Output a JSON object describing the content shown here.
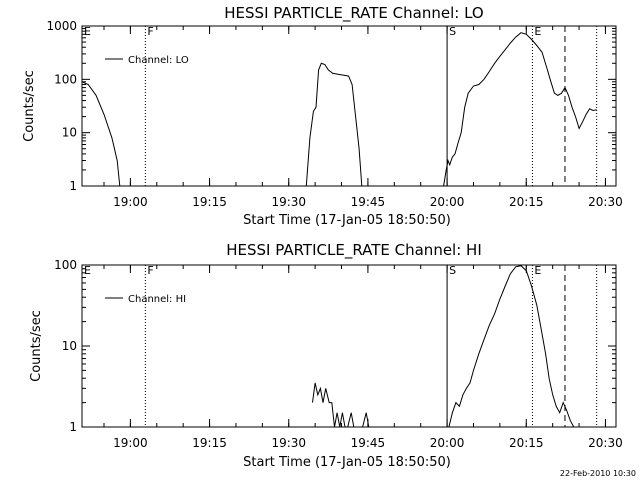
{
  "footer": {
    "date_stamp": "22-Feb-2010 10:30"
  },
  "chart_data": [
    {
      "type": "line",
      "title": "HESSI PARTICLE_RATE Channel: LO",
      "xlabel": "Start Time (17-Jan-05 18:50:50)",
      "ylabel": "Counts/sec",
      "yscale": "log",
      "xlim": [
        "18:50:50",
        "20:32:00"
      ],
      "ylim": [
        1,
        1000
      ],
      "x_ticks": [
        "19:00",
        "19:15",
        "19:30",
        "19:45",
        "20:00",
        "20:15",
        "20:30"
      ],
      "y_ticks": [
        "1",
        "10",
        "100",
        "1000"
      ],
      "legend": {
        "position": "top-left",
        "entries": [
          "Channel: LO"
        ]
      },
      "markers": [
        {
          "label": "E",
          "x": "18:50:50",
          "style": "dotted"
        },
        {
          "label": "F",
          "x": "19:02:50",
          "style": "dotted"
        },
        {
          "label": "S",
          "x": "20:00:00",
          "style": "solid"
        },
        {
          "label": "E",
          "x": "20:16:10",
          "style": "dotted"
        },
        {
          "label": "",
          "x": "20:22:20",
          "style": "dashed"
        },
        {
          "label": "",
          "x": "20:28:20",
          "style": "dotted"
        }
      ],
      "series": [
        {
          "name": "Channel: LO",
          "segments": [
            [
              [
                "18:50:50",
                90
              ],
              [
                "18:52:00",
                80
              ],
              [
                "18:53:30",
                50
              ],
              [
                "18:55:00",
                22
              ],
              [
                "18:56:30",
                8
              ],
              [
                "18:57:30",
                3
              ],
              [
                "18:58:00",
                1
              ]
            ],
            [
              [
                "19:33:20",
                1
              ],
              [
                "19:34:00",
                8
              ],
              [
                "19:34:40",
                25
              ],
              [
                "19:35:10",
                30
              ],
              [
                "19:35:40",
                150
              ],
              [
                "19:36:10",
                200
              ],
              [
                "19:36:50",
                190
              ],
              [
                "19:37:30",
                150
              ],
              [
                "19:38:20",
                130
              ],
              [
                "19:39:20",
                125
              ],
              [
                "19:40:20",
                120
              ],
              [
                "19:41:20",
                115
              ],
              [
                "19:42:00",
                80
              ],
              [
                "19:42:40",
                20
              ],
              [
                "19:43:20",
                5
              ],
              [
                "19:43:50",
                1
              ]
            ],
            [
              [
                "19:59:20",
                1
              ],
              [
                "19:59:50",
                2
              ],
              [
                "20:00:10",
                3
              ],
              [
                "20:00:30",
                2.5
              ],
              [
                "20:01:00",
                3.5
              ],
              [
                "20:01:30",
                4
              ],
              [
                "20:02:00",
                6
              ],
              [
                "20:02:40",
                10
              ],
              [
                "20:03:20",
                30
              ],
              [
                "20:04:00",
                55
              ],
              [
                "20:05:00",
                75
              ],
              [
                "20:06:00",
                80
              ],
              [
                "20:07:00",
                100
              ],
              [
                "20:08:00",
                140
              ],
              [
                "20:09:00",
                200
              ],
              [
                "20:10:00",
                270
              ],
              [
                "20:11:00",
                360
              ],
              [
                "20:12:00",
                480
              ],
              [
                "20:13:00",
                620
              ],
              [
                "20:14:00",
                750
              ],
              [
                "20:15:00",
                700
              ],
              [
                "20:16:00",
                560
              ],
              [
                "20:17:00",
                430
              ],
              [
                "20:18:00",
                320
              ],
              [
                "20:19:00",
                150
              ],
              [
                "20:19:40",
                90
              ],
              [
                "20:20:20",
                55
              ],
              [
                "20:21:00",
                50
              ],
              [
                "20:21:40",
                55
              ],
              [
                "20:22:20",
                70
              ],
              [
                "20:23:00",
                50
              ],
              [
                "20:23:40",
                30
              ],
              [
                "20:24:20",
                20
              ],
              [
                "20:25:00",
                12
              ],
              [
                "20:25:40",
                16
              ],
              [
                "20:26:20",
                22
              ],
              [
                "20:27:00",
                28
              ],
              [
                "20:27:40",
                26
              ],
              [
                "20:28:20",
                27
              ]
            ]
          ]
        }
      ]
    },
    {
      "type": "line",
      "title": "HESSI PARTICLE_RATE Channel: HI",
      "xlabel": "Start Time (17-Jan-05 18:50:50)",
      "ylabel": "Counts/sec",
      "yscale": "log",
      "xlim": [
        "18:50:50",
        "20:32:00"
      ],
      "ylim": [
        1,
        100
      ],
      "x_ticks": [
        "19:00",
        "19:15",
        "19:30",
        "19:45",
        "20:00",
        "20:15",
        "20:30"
      ],
      "y_ticks": [
        "1",
        "10",
        "100"
      ],
      "legend": {
        "position": "top-left",
        "entries": [
          "Channel: HI"
        ]
      },
      "markers": [
        {
          "label": "E",
          "x": "18:50:50",
          "style": "dotted"
        },
        {
          "label": "F",
          "x": "19:02:50",
          "style": "dotted"
        },
        {
          "label": "S",
          "x": "20:00:00",
          "style": "solid"
        },
        {
          "label": "E",
          "x": "20:16:10",
          "style": "dotted"
        },
        {
          "label": "",
          "x": "20:22:20",
          "style": "dashed"
        },
        {
          "label": "",
          "x": "20:28:20",
          "style": "dotted"
        }
      ],
      "series": [
        {
          "name": "Channel: HI",
          "segments": [
            [
              [
                "19:34:30",
                2
              ],
              [
                "19:35:00",
                3.5
              ],
              [
                "19:35:30",
                2.5
              ],
              [
                "19:36:00",
                3
              ],
              [
                "19:36:30",
                2
              ],
              [
                "19:37:00",
                3
              ],
              [
                "19:37:40",
                2
              ],
              [
                "19:38:10",
                2
              ],
              [
                "19:38:40",
                1
              ],
              [
                "19:39:10",
                1.5
              ],
              [
                "19:39:40",
                1
              ],
              [
                "19:40:10",
                1.5
              ],
              [
                "19:40:40",
                1
              ],
              [
                "19:41:10",
                1
              ],
              [
                "19:41:50",
                1.5
              ],
              [
                "19:42:20",
                1
              ]
            ],
            [
              [
                "19:44:00",
                1
              ],
              [
                "19:44:40",
                1.5
              ],
              [
                "19:45:10",
                1
              ]
            ],
            [
              [
                "20:00:20",
                1
              ],
              [
                "20:01:00",
                1.5
              ],
              [
                "20:01:40",
                2
              ],
              [
                "20:02:20",
                1.8
              ],
              [
                "20:03:00",
                2.5
              ],
              [
                "20:03:40",
                3
              ],
              [
                "20:04:20",
                3.5
              ],
              [
                "20:05:00",
                5
              ],
              [
                "20:06:00",
                8
              ],
              [
                "20:07:00",
                12
              ],
              [
                "20:08:00",
                18
              ],
              [
                "20:09:00",
                25
              ],
              [
                "20:10:00",
                38
              ],
              [
                "20:11:00",
                55
              ],
              [
                "20:12:00",
                78
              ],
              [
                "20:13:00",
                95
              ],
              [
                "20:14:00",
                98
              ],
              [
                "20:15:00",
                85
              ],
              [
                "20:16:00",
                55
              ],
              [
                "20:17:00",
                32
              ],
              [
                "20:18:00",
                14
              ],
              [
                "20:18:40",
                8
              ],
              [
                "20:19:20",
                4
              ],
              [
                "20:20:00",
                2.5
              ],
              [
                "20:20:40",
                1.8
              ],
              [
                "20:21:20",
                1.5
              ],
              [
                "20:22:00",
                2
              ],
              [
                "20:22:40",
                1.6
              ],
              [
                "20:23:20",
                1.2
              ],
              [
                "20:24:00",
                1
              ]
            ]
          ]
        }
      ]
    }
  ]
}
